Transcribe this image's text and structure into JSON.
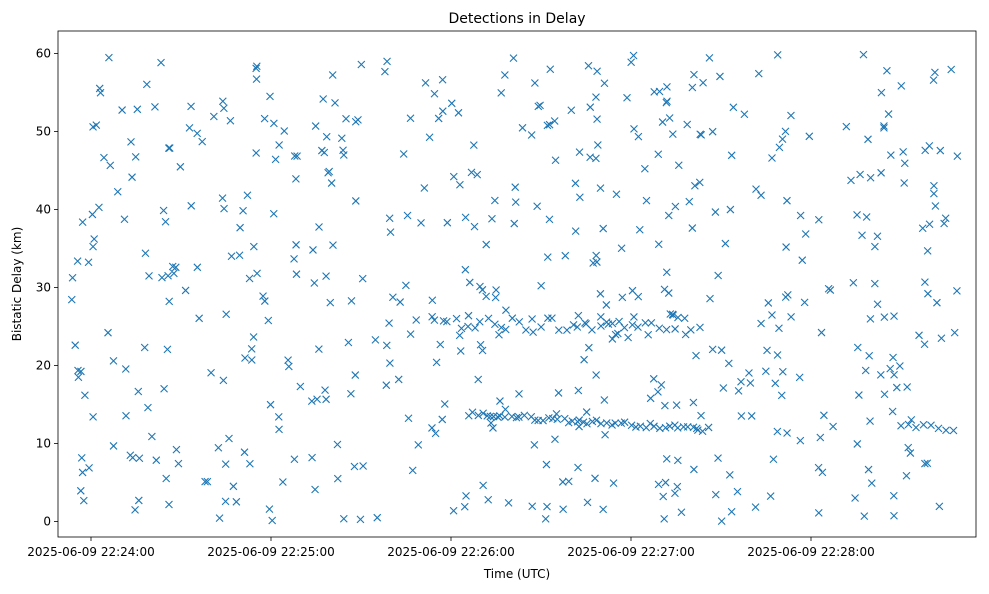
{
  "chart_data": {
    "type": "scatter",
    "title": "Detections in Delay",
    "xlabel": "Time (UTC)",
    "ylabel": "Bistatic Delay (km)",
    "x_ticks": [
      "2025-06-09 22:24:00",
      "2025-06-09 22:25:00",
      "2025-06-09 22:26:00",
      "2025-06-09 22:27:00",
      "2025-06-09 22:28:00"
    ],
    "y_ticks": [
      0,
      10,
      20,
      30,
      40,
      50,
      60
    ],
    "xlim": [
      "2025-06-09 22:23:49",
      "2025-06-09 22:28:55"
    ],
    "ylim": [
      -2.0,
      62.9
    ],
    "marker": "x",
    "color": "#1f77b4",
    "grid": false,
    "x": [],
    "y": [],
    "point_count_approx": 720
  }
}
